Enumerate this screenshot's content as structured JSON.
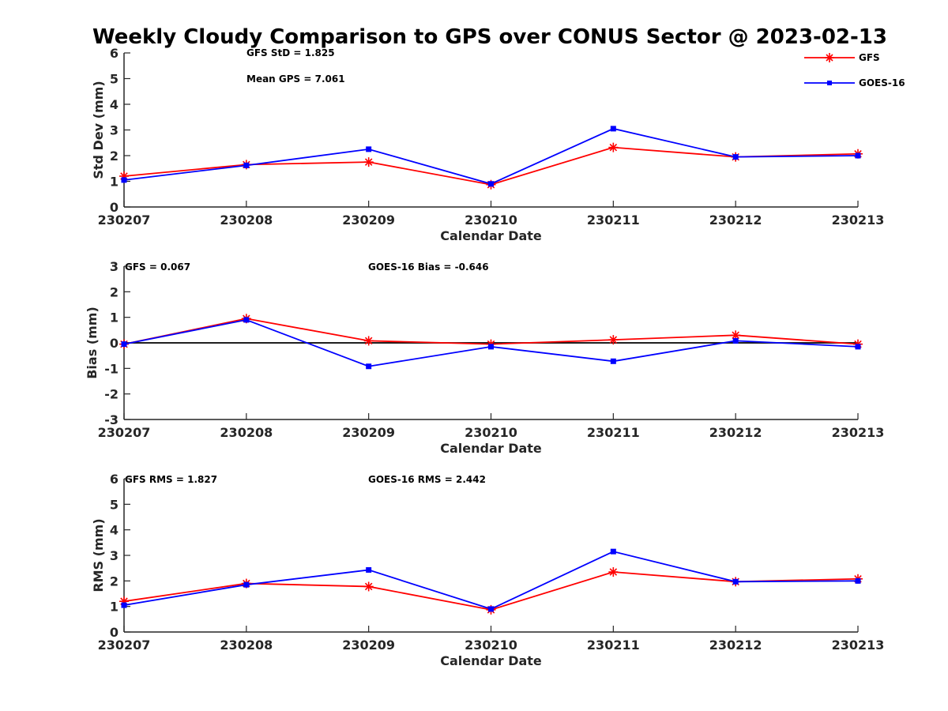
{
  "title": "Weekly Cloudy Comparison to GPS over CONUS Sector @ 2023-02-13",
  "colors": {
    "GFS": "#ff0000",
    "GOES-16": "#0000ff",
    "axis": "#262626"
  },
  "legend": {
    "placement": "top-right",
    "entries": [
      {
        "name": "GFS",
        "marker": "asterisk"
      },
      {
        "name": "GOES-16",
        "marker": "square"
      }
    ]
  },
  "chart_data": [
    {
      "type": "line",
      "xlabel": "Calendar Date",
      "ylabel": "Std Dev (mm)",
      "categories": [
        "230207",
        "230208",
        "230209",
        "230210",
        "230211",
        "230212",
        "230213"
      ],
      "ylim": [
        0,
        6
      ],
      "yticks": [
        0,
        1,
        2,
        3,
        4,
        5,
        6
      ],
      "grid": false,
      "zero_line": false,
      "annotations": [
        "GFS StD = 1.825",
        "Mean GPS = 7.061"
      ],
      "series": [
        {
          "name": "GFS",
          "values": [
            1.2,
            1.65,
            1.75,
            0.87,
            2.32,
            1.95,
            2.07
          ]
        },
        {
          "name": "GOES-16",
          "values": [
            1.05,
            1.62,
            2.25,
            0.9,
            3.05,
            1.95,
            2.0
          ]
        }
      ]
    },
    {
      "type": "line",
      "xlabel": "Calendar Date",
      "ylabel": "Bias (mm)",
      "categories": [
        "230207",
        "230208",
        "230209",
        "230210",
        "230211",
        "230212",
        "230213"
      ],
      "ylim": [
        -3,
        3
      ],
      "yticks": [
        -3,
        -2,
        -1,
        0,
        1,
        2,
        3
      ],
      "grid": false,
      "zero_line": true,
      "annotations": [
        "GFS = 0.067",
        "GOES-16 Bias  = -0.646"
      ],
      "series": [
        {
          "name": "GFS",
          "values": [
            -0.05,
            0.95,
            0.08,
            -0.05,
            0.12,
            0.3,
            -0.05
          ]
        },
        {
          "name": "GOES-16",
          "values": [
            -0.05,
            0.9,
            -0.92,
            -0.15,
            -0.72,
            0.08,
            -0.15
          ]
        }
      ]
    },
    {
      "type": "line",
      "xlabel": "Calendar Date",
      "ylabel": "RMS (mm)",
      "categories": [
        "230207",
        "230208",
        "230209",
        "230210",
        "230211",
        "230212",
        "230213"
      ],
      "ylim": [
        0,
        6
      ],
      "yticks": [
        0,
        1,
        2,
        3,
        4,
        5,
        6
      ],
      "grid": false,
      "zero_line": false,
      "annotations": [
        "GFS RMS = 1.827",
        "GOES-16 RMS = 2.442"
      ],
      "series": [
        {
          "name": "GFS",
          "values": [
            1.2,
            1.9,
            1.78,
            0.87,
            2.35,
            1.97,
            2.08
          ]
        },
        {
          "name": "GOES-16",
          "values": [
            1.05,
            1.85,
            2.43,
            0.9,
            3.15,
            1.97,
            2.0
          ]
        }
      ]
    }
  ]
}
